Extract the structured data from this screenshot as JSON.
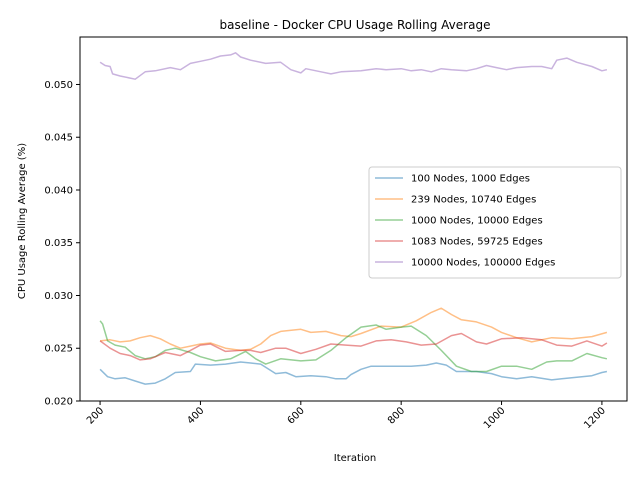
{
  "chart_data": {
    "type": "line",
    "title": "baseline - Docker CPU Usage Rolling Average",
    "xlabel": "Iteration",
    "ylabel": "CPU Usage Rolling Average (%)",
    "xlim": [
      160,
      1250
    ],
    "ylim": [
      0.02,
      0.0545
    ],
    "xticks": [
      200,
      400,
      600,
      800,
      1000,
      1200
    ],
    "yticks": [
      0.02,
      0.025,
      0.03,
      0.035,
      0.04,
      0.045,
      0.05
    ],
    "ytick_labels": [
      "0.020",
      "0.025",
      "0.030",
      "0.035",
      "0.040",
      "0.045",
      "0.050"
    ],
    "grid": false,
    "legend_position": "center-right",
    "series": [
      {
        "name": "100 Nodes, 1000 Edges",
        "color": "#1f77b4",
        "x": [
          200,
          215,
          230,
          250,
          270,
          290,
          310,
          330,
          350,
          380,
          390,
          420,
          450,
          480,
          500,
          520,
          550,
          570,
          590,
          620,
          650,
          670,
          690,
          700,
          720,
          740,
          780,
          800,
          820,
          850,
          870,
          890,
          910,
          950,
          980,
          1000,
          1030,
          1060,
          1100,
          1120,
          1140,
          1180,
          1200,
          1210
        ],
        "values": [
          0.023,
          0.0223,
          0.0221,
          0.0222,
          0.0219,
          0.0216,
          0.0217,
          0.0221,
          0.0227,
          0.0228,
          0.0235,
          0.0234,
          0.0235,
          0.0237,
          0.0236,
          0.0235,
          0.0226,
          0.0227,
          0.0223,
          0.0224,
          0.0223,
          0.0221,
          0.0221,
          0.0225,
          0.023,
          0.0233,
          0.0233,
          0.0233,
          0.0233,
          0.0234,
          0.0236,
          0.0234,
          0.0228,
          0.0228,
          0.0226,
          0.0223,
          0.0221,
          0.0223,
          0.022,
          0.0221,
          0.0222,
          0.0224,
          0.0227,
          0.0228
        ]
      },
      {
        "name": "239 Nodes, 10740 Edges",
        "color": "#ff7f0e",
        "x": [
          200,
          220,
          240,
          260,
          280,
          300,
          320,
          340,
          360,
          380,
          400,
          420,
          450,
          480,
          500,
          520,
          540,
          560,
          600,
          620,
          650,
          680,
          700,
          720,
          760,
          800,
          830,
          860,
          880,
          900,
          920,
          950,
          980,
          1000,
          1030,
          1060,
          1100,
          1140,
          1180,
          1210
        ],
        "values": [
          0.0257,
          0.0258,
          0.0256,
          0.0257,
          0.026,
          0.0262,
          0.0259,
          0.0254,
          0.025,
          0.0252,
          0.0254,
          0.0255,
          0.025,
          0.0248,
          0.0249,
          0.0254,
          0.0262,
          0.0266,
          0.0268,
          0.0265,
          0.0266,
          0.0262,
          0.0261,
          0.0264,
          0.0271,
          0.027,
          0.0276,
          0.0284,
          0.0288,
          0.0282,
          0.0277,
          0.0275,
          0.027,
          0.0265,
          0.026,
          0.0256,
          0.026,
          0.0259,
          0.0261,
          0.0265
        ]
      },
      {
        "name": "1000 Nodes, 10000 Edges",
        "color": "#2ca02c",
        "x": [
          200,
          205,
          215,
          230,
          250,
          270,
          290,
          310,
          330,
          350,
          380,
          400,
          430,
          460,
          490,
          510,
          530,
          560,
          600,
          630,
          660,
          690,
          720,
          750,
          770,
          800,
          820,
          850,
          880,
          910,
          940,
          970,
          1000,
          1030,
          1060,
          1090,
          1110,
          1140,
          1170,
          1200,
          1210
        ],
        "values": [
          0.0276,
          0.0273,
          0.0257,
          0.0253,
          0.0251,
          0.0243,
          0.024,
          0.0242,
          0.0248,
          0.025,
          0.0246,
          0.0242,
          0.0238,
          0.024,
          0.0247,
          0.024,
          0.0235,
          0.024,
          0.0238,
          0.0239,
          0.0248,
          0.026,
          0.027,
          0.0272,
          0.0268,
          0.027,
          0.0271,
          0.0262,
          0.0248,
          0.0233,
          0.0228,
          0.0228,
          0.0233,
          0.0233,
          0.023,
          0.0237,
          0.0238,
          0.0238,
          0.0245,
          0.0241,
          0.024
        ]
      },
      {
        "name": "1083 Nodes, 59725 Edges",
        "color": "#d62728",
        "x": [
          200,
          220,
          240,
          260,
          280,
          300,
          330,
          360,
          380,
          400,
          420,
          450,
          480,
          500,
          520,
          550,
          570,
          600,
          630,
          660,
          690,
          720,
          750,
          780,
          810,
          840,
          870,
          900,
          920,
          950,
          970,
          1000,
          1040,
          1080,
          1110,
          1140,
          1170,
          1200,
          1210
        ],
        "values": [
          0.0257,
          0.025,
          0.0245,
          0.0243,
          0.0239,
          0.024,
          0.0246,
          0.0243,
          0.0248,
          0.0253,
          0.0254,
          0.0247,
          0.0248,
          0.0248,
          0.0246,
          0.025,
          0.025,
          0.0245,
          0.0249,
          0.0254,
          0.0253,
          0.0252,
          0.0257,
          0.0258,
          0.0256,
          0.0253,
          0.0254,
          0.0262,
          0.0264,
          0.0256,
          0.0254,
          0.0259,
          0.026,
          0.0258,
          0.0253,
          0.0252,
          0.0257,
          0.0252,
          0.0255
        ]
      },
      {
        "name": "10000 Nodes, 100000 Edges",
        "color": "#9467bd",
        "x": [
          200,
          210,
          220,
          225,
          240,
          260,
          270,
          290,
          310,
          340,
          360,
          380,
          400,
          420,
          440,
          460,
          470,
          480,
          500,
          530,
          560,
          580,
          600,
          610,
          640,
          660,
          680,
          720,
          750,
          770,
          800,
          820,
          840,
          860,
          880,
          900,
          930,
          950,
          970,
          990,
          1010,
          1030,
          1060,
          1080,
          1100,
          1110,
          1130,
          1150,
          1180,
          1200,
          1210
        ],
        "values": [
          0.0521,
          0.0518,
          0.0517,
          0.051,
          0.0508,
          0.0506,
          0.0505,
          0.0512,
          0.0513,
          0.0516,
          0.0514,
          0.052,
          0.0522,
          0.0524,
          0.0527,
          0.0528,
          0.053,
          0.0526,
          0.0523,
          0.052,
          0.0521,
          0.0514,
          0.0511,
          0.0515,
          0.0512,
          0.051,
          0.0512,
          0.0513,
          0.0515,
          0.0514,
          0.0515,
          0.0513,
          0.0514,
          0.0512,
          0.0515,
          0.0514,
          0.0513,
          0.0515,
          0.0518,
          0.0516,
          0.0514,
          0.0516,
          0.0517,
          0.0517,
          0.0515,
          0.0523,
          0.0525,
          0.0521,
          0.0517,
          0.0513,
          0.0514
        ]
      }
    ]
  }
}
